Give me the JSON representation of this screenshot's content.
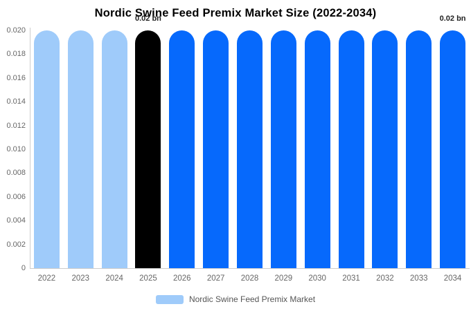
{
  "chart_data": {
    "type": "bar",
    "title": "Nordic Swine Feed Premix Market Size (2022-2034)",
    "categories": [
      "2022",
      "2023",
      "2024",
      "2025",
      "2026",
      "2027",
      "2028",
      "2029",
      "2030",
      "2031",
      "2032",
      "2033",
      "2034"
    ],
    "series": [
      {
        "name": "Nordic Swine Feed Premix Market",
        "values": [
          0.02,
          0.02,
          0.02,
          0.02,
          0.02,
          0.02,
          0.02,
          0.02,
          0.02,
          0.02,
          0.02,
          0.02,
          0.02
        ]
      }
    ],
    "unit": "bn",
    "xlabel": "",
    "ylabel": "",
    "ylim": [
      0,
      0.02
    ],
    "y_ticks": [
      "0.020",
      "0.018",
      "0.016",
      "0.014",
      "0.012",
      "0.010",
      "0.008",
      "0.006",
      "0.004",
      "0.002",
      "0"
    ],
    "grid": false,
    "legend_position": "bottom",
    "bar_colors": [
      "#9FCBFA",
      "#9FCBFA",
      "#9FCBFA",
      "#000000",
      "#0669FC",
      "#0669FC",
      "#0669FC",
      "#0669FC",
      "#0669FC",
      "#0669FC",
      "#0669FC",
      "#0669FC",
      "#0669FC"
    ],
    "annotations": [
      {
        "text": "0.02 bn",
        "category": "2025"
      },
      {
        "text": "0.02 bn",
        "category": "2034"
      }
    ]
  },
  "legend": {
    "label": "Nordic Swine Feed Premix Market",
    "swatch_color": "#9FCBFA"
  },
  "colors": {
    "historical_bar": "#9FCBFA",
    "highlight_bar": "#000000",
    "forecast_bar": "#0669FC",
    "axis_line": "#cccccc",
    "tick_text": "#666666",
    "legend_text": "#555555",
    "annotation_text": "#222222",
    "title_text": "#000000",
    "background": "#ffffff"
  }
}
